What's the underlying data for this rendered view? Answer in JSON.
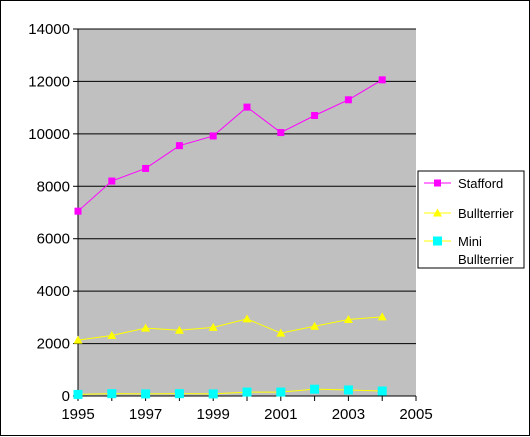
{
  "chart_data": {
    "type": "line",
    "x": [
      1995,
      1996,
      1997,
      1998,
      1999,
      2000,
      2001,
      2002,
      2003,
      2004
    ],
    "series": [
      {
        "name": "Stafford",
        "color": "#ff00ff",
        "marker": "square",
        "values": [
          7050,
          8200,
          8680,
          9550,
          9920,
          11020,
          10050,
          10700,
          11300,
          12060
        ]
      },
      {
        "name": "Bullterrier",
        "color": "#ffff00",
        "marker": "triangle",
        "values": [
          2130,
          2310,
          2590,
          2510,
          2620,
          2940,
          2400,
          2660,
          2920,
          3020
        ]
      },
      {
        "name_lines": [
          "Mini",
          "Bullterrier"
        ],
        "color": "#ffff00",
        "marker_color": "#00ffff",
        "marker": "square-large",
        "values": [
          60,
          90,
          80,
          90,
          80,
          150,
          150,
          260,
          230,
          190
        ]
      }
    ],
    "title": "",
    "xlabel": "",
    "ylabel": "",
    "xlim": [
      1995,
      2005
    ],
    "ylim": [
      0,
      14000
    ],
    "xticks": [
      "1995",
      "1997",
      "1999",
      "2001",
      "2003",
      "2005"
    ],
    "yticks": [
      "0",
      "2000",
      "4000",
      "6000",
      "8000",
      "10000",
      "12000",
      "14000"
    ],
    "grid": true,
    "plot_background": "#c0c0c0",
    "legend_position": "right"
  }
}
